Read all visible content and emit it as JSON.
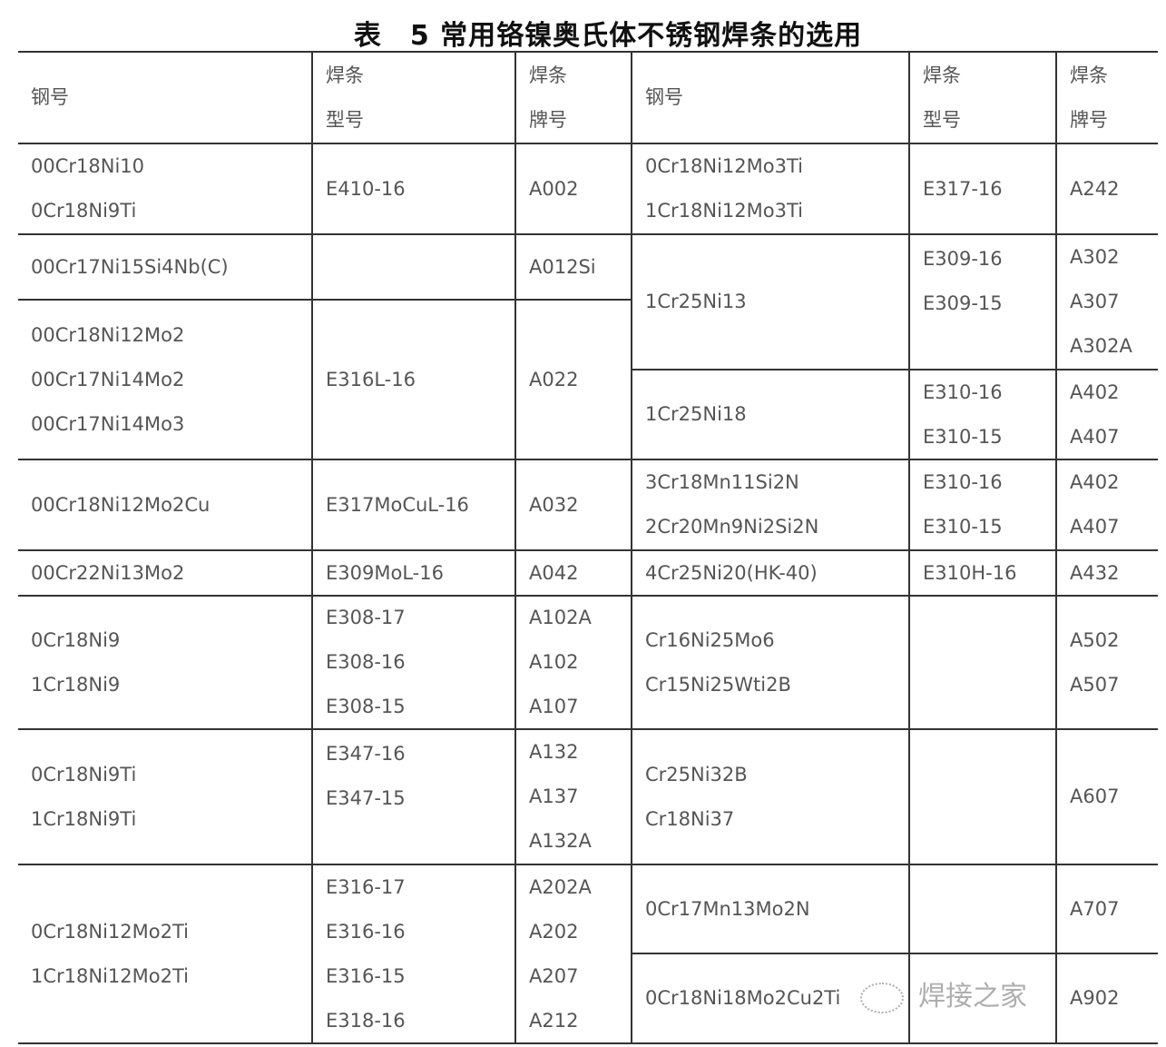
{
  "title": "表　5  常用铬镍奥氏体不锈钢焊条的选用",
  "header": [
    "钢号",
    "焊条\n型号",
    "焊条\n牌号",
    "钢号",
    "焊条\n型号",
    "焊条\n牌号"
  ],
  "cells": {
    "r1": [
      "00Cr18Ni10\n0Cr18Ni9Ti",
      "E410-16",
      "A002",
      "0Cr18Ni12Mo3Ti\n1Cr18Ni12Mo3Ti",
      "E317-16",
      "A242"
    ],
    "r2l": [
      "00Cr17Ni15Si4Nb(C)",
      "",
      "A012Si"
    ],
    "r2r": [
      "1Cr25Ni13",
      "E309-16\nE309-15",
      "A302\nA307\nA302A"
    ],
    "r3l": [
      "00Cr18Ni12Mo2\n00Cr17Ni14Mo2\n00Cr17Ni14Mo3",
      "E316L-16",
      "A022"
    ],
    "r3r": [
      "1Cr25Ni18",
      "E310-16\nE310-15",
      "A402\nA407"
    ],
    "r4": [
      "00Cr18Ni12Mo2Cu",
      "E317MoCuL-16",
      "A032",
      "3Cr18Mn11Si2N\n2Cr20Mn9Ni2Si2N",
      "E310-16\nE310-15",
      "A402\nA407"
    ],
    "r5": [
      "00Cr22Ni13Mo2",
      "E309MoL-16",
      "A042",
      "4Cr25Ni20(HK-40)",
      "E310H-16",
      "A432"
    ],
    "r6": [
      "0Cr18Ni9\n1Cr18Ni9",
      "E308-17\nE308-16\nE308-15",
      "A102A\nA102\nA107",
      "Cr16Ni25Mo6\nCr15Ni25Wti2B",
      "",
      "A502\nA507"
    ],
    "r7": [
      "0Cr18Ni9Ti\n1Cr18Ni9Ti",
      "E347-16\nE347-15",
      "A132\nA137\nA132A",
      "Cr25Ni32B\nCr18Ni37",
      "",
      "A607"
    ],
    "r8l": [
      "0Cr18Ni12Mo2Ti\n1Cr18Ni12Mo2Ti",
      "E316-17\nE316-16\nE316-15\nE318-16",
      "A202A\nA202\nA207\nA212"
    ],
    "r8r": [
      "0Cr17Mn13Mo2N",
      "",
      "A707"
    ],
    "r9r": [
      "0Cr18Ni18Mo2Cu2Ti",
      "",
      "A902"
    ]
  },
  "watermark": "焊接之家"
}
